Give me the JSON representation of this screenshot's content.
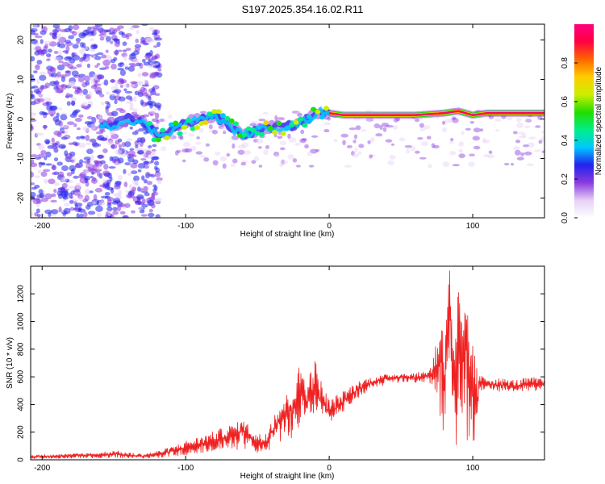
{
  "title": "S197.2025.354.16.02.R11",
  "chart_data": [
    {
      "type": "heatmap",
      "title": "S197.2025.354.16.02.R11",
      "xlabel": "Height of straight line (km)",
      "ylabel": "Frequency (Hz)",
      "xlim": [
        -208,
        150
      ],
      "ylim": [
        -25,
        24
      ],
      "xticks": [
        -200,
        -100,
        0,
        100
      ],
      "yticks": [
        -20,
        -10,
        0,
        10,
        20
      ],
      "xtick_labels": [
        "-200",
        "-100",
        "0",
        "100"
      ],
      "ytick_labels": [
        "-20",
        "-10",
        "0",
        "10",
        "20"
      ],
      "ridge": {
        "x": [
          -160,
          -155,
          -150,
          -140,
          -130,
          -120,
          -110,
          -100,
          -90,
          -80,
          -70,
          -60,
          -50,
          -40,
          -30,
          -20,
          -10,
          -5,
          0,
          10,
          20,
          40,
          60,
          80,
          90,
          100,
          110,
          130,
          150
        ],
        "y": [
          -2,
          -2,
          -1.5,
          0,
          -1,
          -4,
          -3,
          -1,
          0,
          1,
          -2,
          -4,
          -3,
          -2,
          -2,
          -1,
          1,
          2,
          1.5,
          1,
          1,
          1,
          1,
          1.5,
          2,
          1,
          1.5,
          1.5,
          1.5
        ]
      },
      "colorbar": {
        "label": "Normalized spectral amplitude",
        "range": [
          0.0,
          1.0
        ],
        "ticks": [
          0.0,
          0.2,
          0.4,
          0.6,
          0.8
        ],
        "tick_labels": [
          "0.0",
          "0.2",
          "0.4",
          "0.6",
          "0.8"
        ],
        "colormap": [
          "#ffffff",
          "#e6d0f5",
          "#8a3ae0",
          "#2222ee",
          "#00c8ff",
          "#00ee88",
          "#22dd00",
          "#ccee00",
          "#ffcc00",
          "#ff6600",
          "#ff0040",
          "#ff0080"
        ]
      }
    },
    {
      "type": "line",
      "xlabel": "Height of straight line (km)",
      "ylabel": "SNR (10 * v/v)",
      "xlim": [
        -208,
        150
      ],
      "ylim": [
        0,
        1400
      ],
      "xticks": [
        -200,
        -100,
        0,
        100
      ],
      "yticks": [
        0,
        200,
        400,
        600,
        800,
        1000,
        1200
      ],
      "xtick_labels": [
        "-200",
        "-100",
        "0",
        "100"
      ],
      "ytick_labels": [
        "0",
        "200",
        "400",
        "600",
        "800",
        "1000",
        "1200"
      ],
      "series": [
        {
          "name": "SNR",
          "color": "#ee2222",
          "x": [
            -208,
            -200,
            -180,
            -160,
            -150,
            -140,
            -130,
            -120,
            -110,
            -100,
            -90,
            -80,
            -70,
            -65,
            -60,
            -55,
            -50,
            -45,
            -40,
            -35,
            -30,
            -25,
            -22,
            -20,
            -18,
            -15,
            -12,
            -10,
            -8,
            -5,
            0,
            5,
            10,
            15,
            20,
            25,
            30,
            40,
            50,
            60,
            65,
            70,
            75,
            78,
            80,
            82,
            84,
            86,
            88,
            90,
            92,
            95,
            98,
            100,
            102,
            105,
            110,
            120,
            130,
            140,
            150
          ],
          "y": [
            20,
            25,
            30,
            35,
            45,
            30,
            25,
            40,
            60,
            90,
            110,
            140,
            170,
            190,
            220,
            160,
            120,
            110,
            200,
            280,
            330,
            380,
            420,
            500,
            450,
            420,
            500,
            560,
            480,
            420,
            340,
            380,
            420,
            470,
            510,
            540,
            560,
            590,
            600,
            590,
            600,
            610,
            620,
            850,
            500,
            1000,
            1150,
            700,
            400,
            1100,
            600,
            900,
            400,
            700,
            300,
            560,
            550,
            540,
            530,
            545,
            540
          ],
          "envelope_hi": [
            35,
            40,
            45,
            55,
            70,
            55,
            45,
            65,
            95,
            140,
            170,
            210,
            250,
            270,
            290,
            250,
            190,
            200,
            320,
            420,
            470,
            560,
            620,
            800,
            650,
            620,
            680,
            740,
            660,
            560,
            440,
            470,
            500,
            540,
            570,
            590,
            600,
            620,
            630,
            630,
            640,
            660,
            900,
            1050,
            950,
            1250,
            1400,
            1150,
            950,
            1300,
            1050,
            1100,
            1000,
            950,
            700,
            610,
            600,
            590,
            580,
            600,
            590
          ],
          "envelope_lo": [
            5,
            8,
            10,
            12,
            15,
            10,
            8,
            12,
            20,
            30,
            40,
            50,
            60,
            70,
            80,
            60,
            45,
            40,
            80,
            110,
            140,
            160,
            180,
            220,
            230,
            240,
            280,
            320,
            300,
            320,
            260,
            300,
            350,
            400,
            440,
            480,
            500,
            540,
            560,
            550,
            560,
            550,
            450,
            150,
            80,
            200,
            40,
            300,
            100,
            60,
            250,
            150,
            80,
            20,
            180,
            500,
            500,
            490,
            490,
            500,
            490
          ]
        }
      ]
    }
  ]
}
